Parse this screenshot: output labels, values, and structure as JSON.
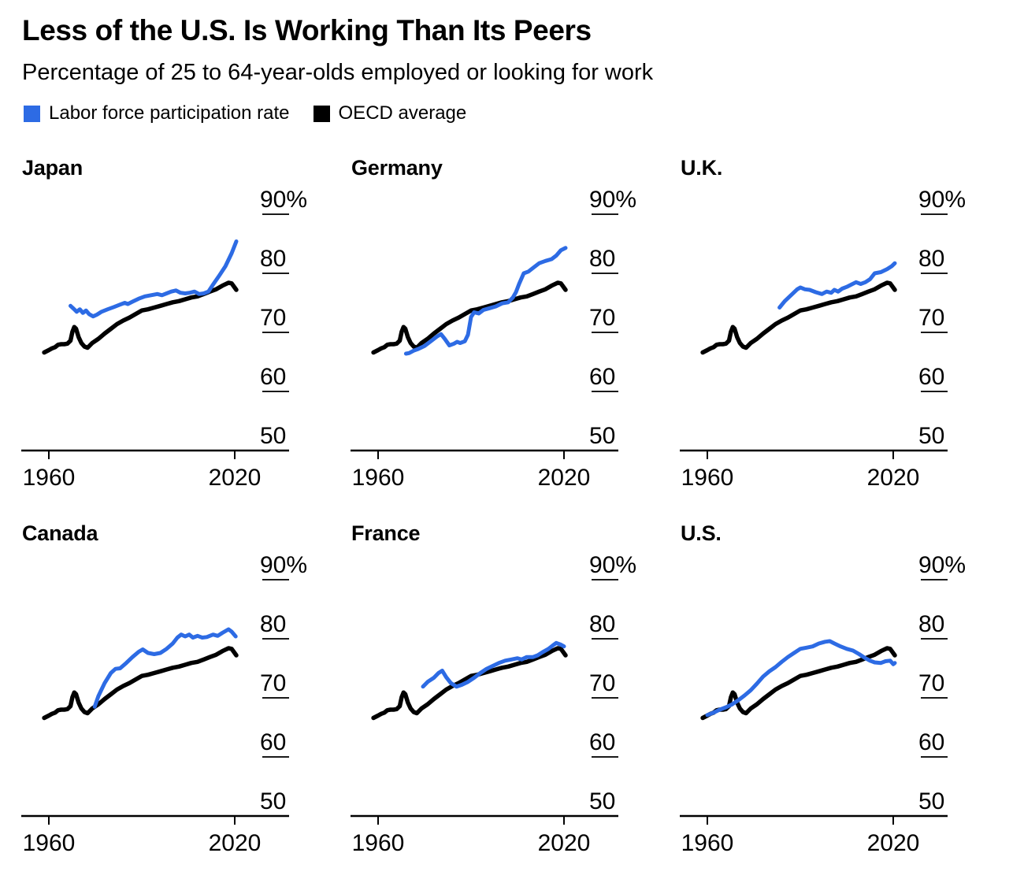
{
  "header": {
    "title": "Less of the U.S. Is Working Than Its Peers",
    "subtitle": "Percentage of 25 to 64-year-olds employed or looking for work"
  },
  "legend": {
    "items": [
      {
        "label": "Labor force participation rate",
        "color": "#2D6BE4"
      },
      {
        "label": "OECD average",
        "color": "#000000"
      }
    ]
  },
  "chart_data": {
    "type": "line",
    "title": "Less of the U.S. Is Working Than Its Peers",
    "subtitle": "Percentage of 25 to 64-year-olds employed or looking for work",
    "unit": "percent of 25-64 year-olds",
    "legend_position": "top",
    "grid": "right-side tick dashes only",
    "colors": {
      "lfpr": "#2D6BE4",
      "oecd": "#000000"
    },
    "x_axis": {
      "tick_values": [
        1960,
        2020
      ],
      "tick_labels": [
        "1960",
        "2020"
      ],
      "range": [
        1957,
        2037
      ]
    },
    "y_axis": {
      "tick_labels": [
        "90%",
        "80",
        "70",
        "60",
        "50"
      ],
      "label_values": [
        90,
        80,
        70,
        60,
        50
      ],
      "gridline_values": [
        90,
        80,
        70,
        60
      ],
      "range": [
        50,
        90
      ]
    },
    "oecd_average_series": [
      [
        1958.5,
        66.6
      ],
      [
        1960,
        67.0
      ],
      [
        1961,
        67.3
      ],
      [
        1962,
        67.5
      ],
      [
        1963,
        67.9
      ],
      [
        1964,
        68.0
      ],
      [
        1965,
        68.0
      ],
      [
        1966,
        68.1
      ],
      [
        1967,
        68.6
      ],
      [
        1967.6,
        70.1
      ],
      [
        1968.2,
        70.9
      ],
      [
        1968.8,
        70.6
      ],
      [
        1969.6,
        69.2
      ],
      [
        1970.5,
        68.2
      ],
      [
        1971.5,
        67.6
      ],
      [
        1972.5,
        67.4
      ],
      [
        1974,
        68.2
      ],
      [
        1976,
        68.9
      ],
      [
        1978,
        69.8
      ],
      [
        1980,
        70.6
      ],
      [
        1982,
        71.4
      ],
      [
        1984,
        72.0
      ],
      [
        1986,
        72.5
      ],
      [
        1988,
        73.1
      ],
      [
        1990,
        73.7
      ],
      [
        1992,
        73.9
      ],
      [
        1994,
        74.2
      ],
      [
        1996,
        74.5
      ],
      [
        1998,
        74.8
      ],
      [
        2000,
        75.1
      ],
      [
        2002,
        75.3
      ],
      [
        2004,
        75.6
      ],
      [
        2006,
        75.9
      ],
      [
        2008,
        76.1
      ],
      [
        2010,
        76.5
      ],
      [
        2012,
        76.9
      ],
      [
        2014,
        77.3
      ],
      [
        2016,
        77.9
      ],
      [
        2018,
        78.4
      ],
      [
        2019,
        78.3
      ],
      [
        2020.5,
        77.2
      ]
    ],
    "panels": [
      {
        "title": "Japan",
        "series": [
          [
            1967,
            74.5
          ],
          [
            1968,
            74.0
          ],
          [
            1969,
            73.5
          ],
          [
            1970,
            73.9
          ],
          [
            1971,
            73.3
          ],
          [
            1972,
            73.7
          ],
          [
            1973,
            73.1
          ],
          [
            1974.3,
            72.7
          ],
          [
            1975.5,
            73.0
          ],
          [
            1977,
            73.5
          ],
          [
            1979,
            73.9
          ],
          [
            1981,
            74.3
          ],
          [
            1983,
            74.7
          ],
          [
            1984.5,
            75.0
          ],
          [
            1985.5,
            74.8
          ],
          [
            1987,
            75.2
          ],
          [
            1989,
            75.7
          ],
          [
            1991,
            76.1
          ],
          [
            1993,
            76.3
          ],
          [
            1995,
            76.5
          ],
          [
            1996.5,
            76.3
          ],
          [
            1998,
            76.6
          ],
          [
            1999.5,
            76.9
          ],
          [
            2001,
            77.1
          ],
          [
            2002.5,
            76.7
          ],
          [
            2004,
            76.6
          ],
          [
            2005.5,
            76.7
          ],
          [
            2007,
            76.9
          ],
          [
            2008.5,
            76.5
          ],
          [
            2010,
            76.6
          ],
          [
            2011.5,
            76.9
          ],
          [
            2013,
            78.1
          ],
          [
            2015,
            79.6
          ],
          [
            2017,
            81.2
          ],
          [
            2019,
            83.4
          ],
          [
            2020.5,
            85.4
          ]
        ]
      },
      {
        "title": "Germany",
        "series": [
          [
            1969,
            66.4
          ],
          [
            1970,
            66.5
          ],
          [
            1971.5,
            66.9
          ],
          [
            1973,
            67.2
          ],
          [
            1975,
            67.7
          ],
          [
            1977,
            68.5
          ],
          [
            1979,
            69.3
          ],
          [
            1980.3,
            69.7
          ],
          [
            1981.5,
            68.9
          ],
          [
            1983,
            67.8
          ],
          [
            1984.5,
            68.1
          ],
          [
            1985.5,
            68.4
          ],
          [
            1986.5,
            68.2
          ],
          [
            1988,
            68.5
          ],
          [
            1989,
            69.6
          ],
          [
            1990,
            72.6
          ],
          [
            1991,
            73.4
          ],
          [
            1992.5,
            73.2
          ],
          [
            1994,
            73.8
          ],
          [
            1996,
            74.1
          ],
          [
            1998,
            74.4
          ],
          [
            2000,
            74.9
          ],
          [
            2002,
            75.1
          ],
          [
            2003.5,
            75.9
          ],
          [
            2004.5,
            76.8
          ],
          [
            2005.5,
            78.2
          ],
          [
            2007,
            80.0
          ],
          [
            2008.5,
            80.3
          ],
          [
            2010,
            80.9
          ],
          [
            2012,
            81.7
          ],
          [
            2014,
            82.1
          ],
          [
            2016,
            82.4
          ],
          [
            2017.5,
            83.0
          ],
          [
            2019,
            83.9
          ],
          [
            2020.5,
            84.3
          ]
        ]
      },
      {
        "title": "U.K.",
        "series": [
          [
            1983.3,
            74.2
          ],
          [
            1985,
            75.3
          ],
          [
            1987,
            76.3
          ],
          [
            1989,
            77.3
          ],
          [
            1990,
            77.6
          ],
          [
            1991.5,
            77.3
          ],
          [
            1993,
            77.2
          ],
          [
            1995,
            76.8
          ],
          [
            1997,
            76.5
          ],
          [
            1998.5,
            76.9
          ],
          [
            2000,
            76.7
          ],
          [
            2001,
            77.2
          ],
          [
            2002.2,
            76.9
          ],
          [
            2003.5,
            77.4
          ],
          [
            2005,
            77.7
          ],
          [
            2006.5,
            78.1
          ],
          [
            2008,
            78.5
          ],
          [
            2009.5,
            78.2
          ],
          [
            2011,
            78.5
          ],
          [
            2012.5,
            79.0
          ],
          [
            2014,
            80.0
          ],
          [
            2016,
            80.2
          ],
          [
            2018,
            80.7
          ],
          [
            2019.5,
            81.2
          ],
          [
            2020.5,
            81.7
          ]
        ]
      },
      {
        "title": "Canada",
        "series": [
          [
            1974.8,
            68.5
          ],
          [
            1976,
            70.3
          ],
          [
            1978,
            72.5
          ],
          [
            1980,
            74.2
          ],
          [
            1981.5,
            74.9
          ],
          [
            1983,
            75.0
          ],
          [
            1985,
            75.9
          ],
          [
            1987,
            76.9
          ],
          [
            1989,
            77.8
          ],
          [
            1990.3,
            78.2
          ],
          [
            1992,
            77.6
          ],
          [
            1994,
            77.4
          ],
          [
            1996,
            77.6
          ],
          [
            1998,
            78.3
          ],
          [
            2000,
            79.2
          ],
          [
            2001.5,
            80.2
          ],
          [
            2002.7,
            80.7
          ],
          [
            2004,
            80.4
          ],
          [
            2005.3,
            80.7
          ],
          [
            2006.5,
            80.2
          ],
          [
            2008,
            80.5
          ],
          [
            2009.5,
            80.2
          ],
          [
            2011,
            80.3
          ],
          [
            2013,
            80.7
          ],
          [
            2014.5,
            80.5
          ],
          [
            2016,
            81.0
          ],
          [
            2018,
            81.6
          ],
          [
            2019,
            81.2
          ],
          [
            2020.3,
            80.4
          ]
        ]
      },
      {
        "title": "France",
        "series": [
          [
            1974.5,
            71.9
          ],
          [
            1976,
            72.7
          ],
          [
            1978,
            73.4
          ],
          [
            1979.5,
            74.2
          ],
          [
            1980.7,
            74.6
          ],
          [
            1982,
            73.5
          ],
          [
            1983.5,
            72.5
          ],
          [
            1985.3,
            71.9
          ],
          [
            1987,
            72.2
          ],
          [
            1989,
            72.7
          ],
          [
            1991,
            73.4
          ],
          [
            1993,
            74.2
          ],
          [
            1995,
            74.9
          ],
          [
            1997,
            75.4
          ],
          [
            1999,
            75.9
          ],
          [
            2001,
            76.3
          ],
          [
            2003,
            76.5
          ],
          [
            2005,
            76.7
          ],
          [
            2006.3,
            76.5
          ],
          [
            2008,
            76.9
          ],
          [
            2010,
            76.9
          ],
          [
            2011.5,
            77.2
          ],
          [
            2013,
            77.7
          ],
          [
            2015,
            78.3
          ],
          [
            2016.5,
            78.9
          ],
          [
            2017.5,
            79.3
          ],
          [
            2019,
            79.0
          ],
          [
            2020,
            78.7
          ]
        ]
      },
      {
        "title": "U.S.",
        "series": [
          [
            1960,
            67.1
          ],
          [
            1962,
            67.5
          ],
          [
            1964,
            68.0
          ],
          [
            1966,
            68.4
          ],
          [
            1968,
            68.9
          ],
          [
            1970,
            69.6
          ],
          [
            1972,
            70.4
          ],
          [
            1974,
            71.3
          ],
          [
            1976,
            72.4
          ],
          [
            1978,
            73.6
          ],
          [
            1980,
            74.5
          ],
          [
            1982,
            75.2
          ],
          [
            1984,
            76.1
          ],
          [
            1986,
            76.9
          ],
          [
            1988,
            77.6
          ],
          [
            1990,
            78.3
          ],
          [
            1992,
            78.5
          ],
          [
            1994,
            78.7
          ],
          [
            1996,
            79.2
          ],
          [
            1998,
            79.5
          ],
          [
            1999.5,
            79.6
          ],
          [
            2001,
            79.2
          ],
          [
            2003,
            78.7
          ],
          [
            2005,
            78.3
          ],
          [
            2007,
            78.0
          ],
          [
            2009,
            77.4
          ],
          [
            2011,
            76.7
          ],
          [
            2012.5,
            76.3
          ],
          [
            2014,
            76.0
          ],
          [
            2016,
            75.9
          ],
          [
            2017.5,
            76.2
          ],
          [
            2019,
            76.3
          ],
          [
            2020,
            75.7
          ],
          [
            2020.5,
            75.9
          ]
        ]
      }
    ]
  }
}
